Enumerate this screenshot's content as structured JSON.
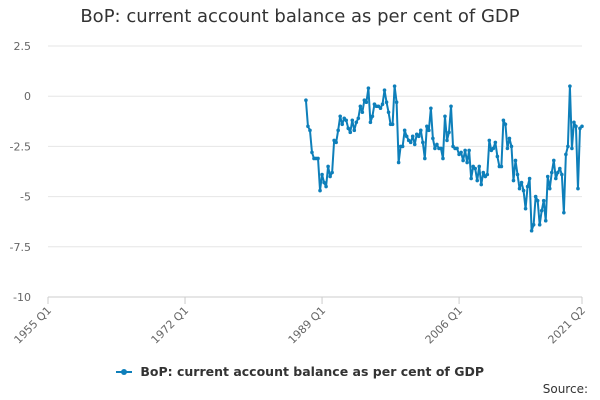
{
  "source_label": "Source:",
  "colors": {
    "series": "#0e7fba",
    "grid": "#e6e6e6",
    "axis": "#cccccc",
    "text": "#666666"
  },
  "chart_data": {
    "type": "line",
    "title": "BoP: current account balance as per cent of GDP",
    "xlabel": "",
    "ylabel": "",
    "ylim": [
      -10,
      2.5
    ],
    "grid": true,
    "legend_position": "bottom",
    "y_ticks": [
      {
        "value": 2.5,
        "label": "2.5"
      },
      {
        "value": 0,
        "label": "0"
      },
      {
        "value": -2.5,
        "label": "-2.5"
      },
      {
        "value": -5,
        "label": "-5"
      },
      {
        "value": -7.5,
        "label": "-7.5"
      },
      {
        "value": -10,
        "label": "-10"
      }
    ],
    "x_axis": {
      "categories_range": [
        "1955 Q1",
        "2021 Q2"
      ]
    },
    "x_ticks": [
      "1955 Q1",
      "1972 Q1",
      "1989 Q1",
      "2006 Q1",
      "2021 Q2"
    ],
    "series": [
      {
        "name": "BoP: current account balance as per cent of GDP",
        "points": [
          [
            "1987 Q1",
            -0.2
          ],
          [
            "1987 Q2",
            -1.5
          ],
          [
            "1987 Q3",
            -1.7
          ],
          [
            "1987 Q4",
            -2.8
          ],
          [
            "1988 Q1",
            -3.1
          ],
          [
            "1988 Q2",
            -3.1
          ],
          [
            "1988 Q3",
            -3.1
          ],
          [
            "1988 Q4",
            -4.7
          ],
          [
            "1989 Q1",
            -3.9
          ],
          [
            "1989 Q2",
            -4.3
          ],
          [
            "1989 Q3",
            -4.5
          ],
          [
            "1989 Q4",
            -3.5
          ],
          [
            "1990 Q1",
            -4.0
          ],
          [
            "1990 Q2",
            -3.8
          ],
          [
            "1990 Q3",
            -2.2
          ],
          [
            "1990 Q4",
            -2.3
          ],
          [
            "1991 Q1",
            -1.7
          ],
          [
            "1991 Q2",
            -1.0
          ],
          [
            "1991 Q3",
            -1.4
          ],
          [
            "1991 Q4",
            -1.1
          ],
          [
            "1992 Q1",
            -1.2
          ],
          [
            "1992 Q2",
            -1.6
          ],
          [
            "1992 Q3",
            -1.8
          ],
          [
            "1992 Q4",
            -1.2
          ],
          [
            "1993 Q1",
            -1.7
          ],
          [
            "1993 Q2",
            -1.3
          ],
          [
            "1993 Q3",
            -1.1
          ],
          [
            "1993 Q4",
            -0.5
          ],
          [
            "1994 Q1",
            -0.8
          ],
          [
            "1994 Q2",
            -0.2
          ],
          [
            "1994 Q3",
            -0.3
          ],
          [
            "1994 Q4",
            0.4
          ],
          [
            "1995 Q1",
            -1.3
          ],
          [
            "1995 Q2",
            -1.0
          ],
          [
            "1995 Q3",
            -0.4
          ],
          [
            "1995 Q4",
            -0.5
          ],
          [
            "1996 Q1",
            -0.5
          ],
          [
            "1996 Q2",
            -0.6
          ],
          [
            "1996 Q3",
            -0.4
          ],
          [
            "1996 Q4",
            0.3
          ],
          [
            "1997 Q1",
            -0.3
          ],
          [
            "1997 Q2",
            -0.8
          ],
          [
            "1997 Q3",
            -1.4
          ],
          [
            "1997 Q4",
            -1.4
          ],
          [
            "1998 Q1",
            0.5
          ],
          [
            "1998 Q2",
            -0.3
          ],
          [
            "1998 Q3",
            -3.3
          ],
          [
            "1998 Q4",
            -2.5
          ],
          [
            "1999 Q1",
            -2.5
          ],
          [
            "1999 Q2",
            -1.7
          ],
          [
            "1999 Q3",
            -2.0
          ],
          [
            "1999 Q4",
            -2.2
          ],
          [
            "2000 Q1",
            -2.3
          ],
          [
            "2000 Q2",
            -2.0
          ],
          [
            "2000 Q3",
            -2.4
          ],
          [
            "2000 Q4",
            -1.9
          ],
          [
            "2001 Q1",
            -2.0
          ],
          [
            "2001 Q2",
            -1.7
          ],
          [
            "2001 Q3",
            -2.3
          ],
          [
            "2001 Q4",
            -3.1
          ],
          [
            "2002 Q1",
            -1.5
          ],
          [
            "2002 Q2",
            -1.7
          ],
          [
            "2002 Q3",
            -0.6
          ],
          [
            "2002 Q4",
            -2.1
          ],
          [
            "2003 Q1",
            -2.6
          ],
          [
            "2003 Q2",
            -2.4
          ],
          [
            "2003 Q3",
            -2.6
          ],
          [
            "2003 Q4",
            -2.6
          ],
          [
            "2004 Q1",
            -3.1
          ],
          [
            "2004 Q2",
            -1.0
          ],
          [
            "2004 Q3",
            -2.2
          ],
          [
            "2004 Q4",
            -1.8
          ],
          [
            "2005 Q1",
            -0.5
          ],
          [
            "2005 Q2",
            -2.5
          ],
          [
            "2005 Q3",
            -2.6
          ],
          [
            "2005 Q4",
            -2.6
          ],
          [
            "2006 Q1",
            -2.9
          ],
          [
            "2006 Q2",
            -2.8
          ],
          [
            "2006 Q3",
            -3.2
          ],
          [
            "2006 Q4",
            -2.7
          ],
          [
            "2007 Q1",
            -3.3
          ],
          [
            "2007 Q2",
            -2.7
          ],
          [
            "2007 Q3",
            -4.1
          ],
          [
            "2007 Q4",
            -3.5
          ],
          [
            "2008 Q1",
            -3.6
          ],
          [
            "2008 Q2",
            -4.2
          ],
          [
            "2008 Q3",
            -3.5
          ],
          [
            "2008 Q4",
            -4.4
          ],
          [
            "2009 Q1",
            -3.8
          ],
          [
            "2009 Q2",
            -4.0
          ],
          [
            "2009 Q3",
            -3.9
          ],
          [
            "2009 Q4",
            -2.2
          ],
          [
            "2010 Q1",
            -2.7
          ],
          [
            "2010 Q2",
            -2.6
          ],
          [
            "2010 Q3",
            -2.3
          ],
          [
            "2010 Q4",
            -3.0
          ],
          [
            "2011 Q1",
            -3.5
          ],
          [
            "2011 Q2",
            -3.5
          ],
          [
            "2011 Q3",
            -1.2
          ],
          [
            "2011 Q4",
            -1.4
          ],
          [
            "2012 Q1",
            -2.6
          ],
          [
            "2012 Q2",
            -2.1
          ],
          [
            "2012 Q3",
            -2.5
          ],
          [
            "2012 Q4",
            -4.2
          ],
          [
            "2013 Q1",
            -3.2
          ],
          [
            "2013 Q2",
            -3.9
          ],
          [
            "2013 Q3",
            -4.6
          ],
          [
            "2013 Q4",
            -4.3
          ],
          [
            "2014 Q1",
            -4.7
          ],
          [
            "2014 Q2",
            -5.6
          ],
          [
            "2014 Q3",
            -4.5
          ],
          [
            "2014 Q4",
            -4.1
          ],
          [
            "2015 Q1",
            -6.7
          ],
          [
            "2015 Q2",
            -6.4
          ],
          [
            "2015 Q3",
            -5.0
          ],
          [
            "2015 Q4",
            -5.2
          ],
          [
            "2016 Q1",
            -6.4
          ],
          [
            "2016 Q2",
            -5.7
          ],
          [
            "2016 Q3",
            -5.2
          ],
          [
            "2016 Q4",
            -6.2
          ],
          [
            "2017 Q1",
            -4.0
          ],
          [
            "2017 Q2",
            -4.6
          ],
          [
            "2017 Q3",
            -3.8
          ],
          [
            "2017 Q4",
            -3.2
          ],
          [
            "2018 Q1",
            -4.1
          ],
          [
            "2018 Q2",
            -3.8
          ],
          [
            "2018 Q3",
            -3.6
          ],
          [
            "2018 Q4",
            -3.9
          ],
          [
            "2019 Q1",
            -5.8
          ],
          [
            "2019 Q2",
            -2.9
          ],
          [
            "2019 Q3",
            -2.5
          ],
          [
            "2019 Q4",
            0.5
          ],
          [
            "2020 Q1",
            -2.6
          ],
          [
            "2020 Q2",
            -1.3
          ],
          [
            "2020 Q3",
            -1.5
          ],
          [
            "2020 Q4",
            -4.6
          ],
          [
            "2021 Q1",
            -1.6
          ],
          [
            "2021 Q2",
            -1.5
          ]
        ]
      }
    ]
  }
}
